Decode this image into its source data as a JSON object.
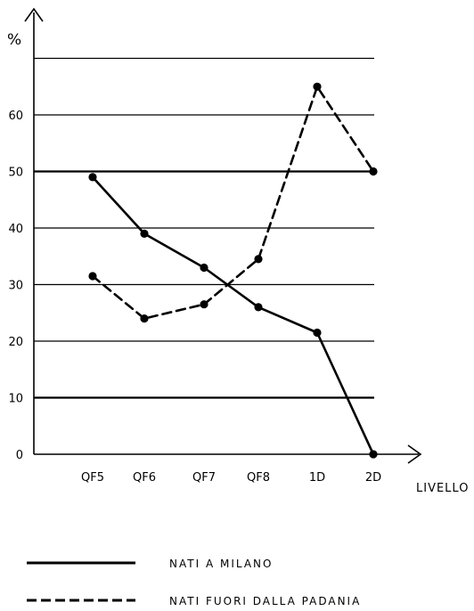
{
  "chart_data": {
    "type": "line",
    "categories": [
      "QF5",
      "QF6",
      "QF7",
      "QF8",
      "1D",
      "2D"
    ],
    "ylabel": "%",
    "xlabel": "LIVELLO",
    "ylim": [
      0,
      70
    ],
    "yticks": [
      "0",
      "10",
      "20",
      "30",
      "40",
      "50",
      "60"
    ],
    "grid": true,
    "legend_position": "bottom",
    "series": [
      {
        "name": "NATI A MILANO",
        "style": "solid",
        "values": [
          49,
          39,
          33,
          26,
          21.5,
          0
        ]
      },
      {
        "name": "NATI FUORI DALLA PADANIA",
        "style": "dashed",
        "values": [
          31.5,
          24,
          26.5,
          34.5,
          65,
          50
        ]
      }
    ]
  },
  "colors": {
    "ink": "#000000",
    "background": "#ffffff"
  }
}
